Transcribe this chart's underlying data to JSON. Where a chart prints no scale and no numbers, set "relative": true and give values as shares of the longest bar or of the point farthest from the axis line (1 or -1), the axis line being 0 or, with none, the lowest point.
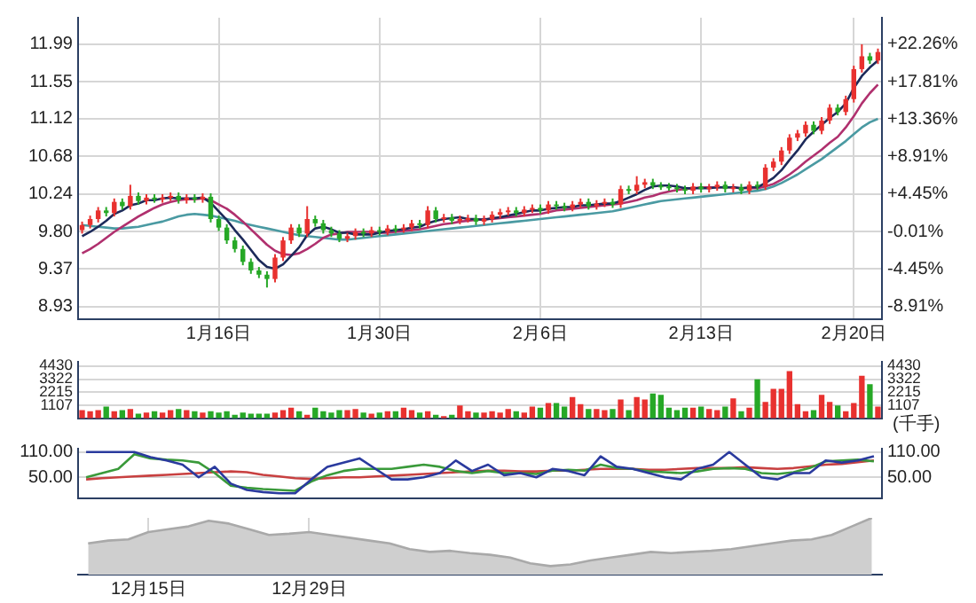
{
  "chart_data": [
    {
      "type": "candlestick",
      "categories": [
        null,
        null,
        null,
        null,
        null,
        null,
        null,
        null,
        null,
        null,
        null,
        null,
        null,
        null,
        null,
        null,
        null,
        "1月16日",
        null,
        null,
        null,
        null,
        null,
        null,
        null,
        null,
        null,
        null,
        null,
        null,
        null,
        null,
        null,
        null,
        null,
        null,
        null,
        "1月30日",
        null,
        null,
        null,
        null,
        null,
        null,
        null,
        null,
        null,
        null,
        null,
        null,
        null,
        null,
        null,
        null,
        null,
        null,
        null,
        "2月6日",
        null,
        null,
        null,
        null,
        null,
        null,
        null,
        null,
        null,
        null,
        null,
        null,
        null,
        null,
        null,
        null,
        null,
        null,
        null,
        "2月13日",
        null,
        null,
        null,
        null,
        null,
        null,
        null,
        null,
        null,
        null,
        null,
        null,
        null,
        null,
        null,
        null,
        null,
        null,
        "2月20日",
        null,
        null,
        null
      ],
      "ohlc": [
        [
          9.82,
          9.92,
          9.78,
          9.88
        ],
        [
          9.88,
          9.99,
          9.84,
          9.95
        ],
        [
          9.95,
          10.09,
          9.91,
          10.05
        ],
        [
          10.05,
          10.09,
          9.98,
          10.02
        ],
        [
          10.02,
          10.19,
          9.98,
          10.15
        ],
        [
          10.15,
          10.19,
          10.06,
          10.1
        ],
        [
          10.1,
          10.35,
          10.06,
          10.22
        ],
        [
          10.22,
          10.26,
          10.12,
          10.16
        ],
        [
          10.16,
          10.24,
          10.12,
          10.2
        ],
        [
          10.2,
          10.24,
          10.14,
          10.18
        ],
        [
          10.18,
          10.24,
          10.14,
          10.2
        ],
        [
          10.2,
          10.26,
          10.16,
          10.22
        ],
        [
          10.22,
          10.26,
          10.13,
          10.17
        ],
        [
          10.17,
          10.24,
          10.13,
          10.2
        ],
        [
          10.2,
          10.24,
          10.14,
          10.18
        ],
        [
          10.18,
          10.25,
          10.14,
          10.21
        ],
        [
          10.21,
          10.25,
          9.91,
          9.95
        ],
        [
          9.95,
          9.99,
          9.81,
          9.85
        ],
        [
          9.85,
          9.89,
          9.66,
          9.7
        ],
        [
          9.7,
          9.74,
          9.56,
          9.6
        ],
        [
          9.6,
          9.64,
          9.41,
          9.45
        ],
        [
          9.45,
          9.49,
          9.31,
          9.35
        ],
        [
          9.35,
          9.39,
          9.26,
          9.3
        ],
        [
          9.3,
          9.34,
          9.15,
          9.25
        ],
        [
          9.25,
          9.54,
          9.21,
          9.5
        ],
        [
          9.5,
          9.74,
          9.46,
          9.7
        ],
        [
          9.7,
          9.89,
          9.66,
          9.85
        ],
        [
          9.85,
          9.89,
          9.74,
          9.78
        ],
        [
          9.78,
          10.1,
          9.74,
          9.95
        ],
        [
          9.95,
          9.99,
          9.86,
          9.9
        ],
        [
          9.9,
          9.94,
          9.78,
          9.82
        ],
        [
          9.82,
          9.86,
          9.74,
          9.78
        ],
        [
          9.78,
          9.82,
          9.68,
          9.72
        ],
        [
          9.72,
          9.79,
          9.68,
          9.75
        ],
        [
          9.75,
          9.84,
          9.71,
          9.8
        ],
        [
          9.8,
          9.84,
          9.74,
          9.78
        ],
        [
          9.78,
          9.86,
          9.74,
          9.82
        ],
        [
          9.82,
          9.86,
          9.76,
          9.8
        ],
        [
          9.8,
          9.88,
          9.76,
          9.84
        ],
        [
          9.84,
          9.88,
          9.79,
          9.83
        ],
        [
          9.83,
          9.89,
          9.79,
          9.85
        ],
        [
          9.85,
          9.94,
          9.81,
          9.9
        ],
        [
          9.9,
          9.94,
          9.84,
          9.88
        ],
        [
          9.88,
          10.1,
          9.84,
          10.05
        ],
        [
          10.05,
          10.09,
          9.91,
          9.95
        ],
        [
          9.95,
          10.01,
          9.91,
          9.97
        ],
        [
          9.97,
          10.01,
          9.89,
          9.93
        ],
        [
          9.93,
          9.99,
          9.89,
          9.95
        ],
        [
          9.95,
          10.0,
          9.91,
          9.96
        ],
        [
          9.96,
          10.0,
          9.88,
          9.92
        ],
        [
          9.92,
          9.99,
          9.88,
          9.95
        ],
        [
          9.95,
          10.04,
          9.91,
          10.0
        ],
        [
          10.0,
          10.07,
          9.96,
          10.03
        ],
        [
          10.03,
          10.09,
          9.99,
          10.05
        ],
        [
          10.05,
          10.09,
          9.98,
          10.02
        ],
        [
          10.02,
          10.1,
          9.98,
          10.06
        ],
        [
          10.06,
          10.12,
          10.02,
          10.08
        ],
        [
          10.08,
          10.12,
          10.01,
          10.05
        ],
        [
          10.05,
          10.16,
          10.01,
          10.12
        ],
        [
          10.12,
          10.16,
          10.06,
          10.1
        ],
        [
          10.1,
          10.14,
          10.04,
          10.08
        ],
        [
          10.08,
          10.16,
          10.04,
          10.12
        ],
        [
          10.12,
          10.19,
          10.08,
          10.15
        ],
        [
          10.15,
          10.19,
          10.06,
          10.1
        ],
        [
          10.1,
          10.17,
          10.06,
          10.13
        ],
        [
          10.13,
          10.19,
          10.09,
          10.15
        ],
        [
          10.15,
          10.19,
          10.08,
          10.12
        ],
        [
          10.12,
          10.34,
          10.08,
          10.3
        ],
        [
          10.3,
          10.34,
          10.24,
          10.28
        ],
        [
          10.28,
          10.45,
          10.24,
          10.35
        ],
        [
          10.35,
          10.42,
          10.31,
          10.38
        ],
        [
          10.38,
          10.42,
          10.3,
          10.34
        ],
        [
          10.34,
          10.38,
          10.29,
          10.33
        ],
        [
          10.33,
          10.37,
          10.28,
          10.32
        ],
        [
          10.32,
          10.36,
          10.26,
          10.3
        ],
        [
          10.3,
          10.34,
          10.24,
          10.28
        ],
        [
          10.28,
          10.37,
          10.24,
          10.33
        ],
        [
          10.33,
          10.37,
          10.26,
          10.3
        ],
        [
          10.3,
          10.36,
          10.26,
          10.32
        ],
        [
          10.32,
          10.39,
          10.28,
          10.35
        ],
        [
          10.35,
          10.39,
          10.26,
          10.3
        ],
        [
          10.3,
          10.36,
          10.26,
          10.32
        ],
        [
          10.32,
          10.36,
          10.24,
          10.28
        ],
        [
          10.28,
          10.39,
          10.24,
          10.35
        ],
        [
          10.35,
          10.39,
          10.29,
          10.33
        ],
        [
          10.33,
          10.59,
          10.29,
          10.55
        ],
        [
          10.55,
          10.66,
          10.51,
          10.62
        ],
        [
          10.62,
          10.79,
          10.58,
          10.75
        ],
        [
          10.75,
          10.94,
          10.71,
          10.9
        ],
        [
          10.9,
          10.99,
          10.86,
          10.95
        ],
        [
          10.95,
          11.09,
          10.91,
          11.05
        ],
        [
          11.05,
          11.09,
          10.94,
          10.98
        ],
        [
          10.98,
          11.14,
          10.94,
          11.1
        ],
        [
          11.1,
          11.29,
          11.06,
          11.25
        ],
        [
          11.25,
          11.29,
          11.16,
          11.2
        ],
        [
          11.2,
          11.39,
          11.16,
          11.35
        ],
        [
          11.35,
          11.74,
          11.31,
          11.7
        ],
        [
          11.7,
          11.99,
          11.66,
          11.85
        ],
        [
          11.85,
          11.89,
          11.76,
          11.8
        ],
        [
          11.8,
          11.94,
          11.76,
          11.9
        ]
      ],
      "colors": [
        "#e8312f",
        "#e8312f",
        "#e8312f",
        "#26a826",
        "#e8312f",
        "#26a826",
        "#e8312f",
        "#26a826",
        "#e8312f",
        "#26a826",
        "#e8312f",
        "#e8312f",
        "#26a826",
        "#e8312f",
        "#26a826",
        "#e8312f",
        "#26a826",
        "#26a826",
        "#26a826",
        "#26a826",
        "#26a826",
        "#26a826",
        "#26a826",
        "#26a826",
        "#e8312f",
        "#e8312f",
        "#e8312f",
        "#26a826",
        "#e8312f",
        "#26a826",
        "#26a826",
        "#26a826",
        "#26a826",
        "#e8312f",
        "#e8312f",
        "#26a826",
        "#e8312f",
        "#26a826",
        "#e8312f",
        "#26a826",
        "#e8312f",
        "#e8312f",
        "#26a826",
        "#e8312f",
        "#26a826",
        "#e8312f",
        "#26a826",
        "#e8312f",
        "#e8312f",
        "#26a826",
        "#e8312f",
        "#e8312f",
        "#e8312f",
        "#e8312f",
        "#26a826",
        "#e8312f",
        "#e8312f",
        "#26a826",
        "#e8312f",
        "#26a826",
        "#26a826",
        "#e8312f",
        "#e8312f",
        "#26a826",
        "#e8312f",
        "#e8312f",
        "#26a826",
        "#e8312f",
        "#26a826",
        "#e8312f",
        "#e8312f",
        "#26a826",
        "#26a826",
        "#26a826",
        "#26a826",
        "#26a826",
        "#e8312f",
        "#26a826",
        "#e8312f",
        "#e8312f",
        "#26a826",
        "#e8312f",
        "#26a826",
        "#e8312f",
        "#26a826",
        "#e8312f",
        "#e8312f",
        "#e8312f",
        "#e8312f",
        "#e8312f",
        "#e8312f",
        "#26a826",
        "#e8312f",
        "#e8312f",
        "#26a826",
        "#e8312f",
        "#e8312f",
        "#e8312f",
        "#26a826",
        "#e8312f"
      ],
      "series": [
        {
          "type": "line",
          "color": "#1c2a5a",
          "values": [
            9.75,
            9.8,
            9.86,
            9.93,
            10.01,
            10.05,
            10.11,
            10.13,
            10.17,
            10.17,
            10.19,
            10.2,
            10.19,
            10.19,
            10.19,
            10.2,
            10.14,
            10.04,
            9.94,
            9.82,
            9.71,
            9.59,
            9.47,
            9.39,
            9.37,
            9.42,
            9.52,
            9.62,
            9.76,
            9.84,
            9.86,
            9.83,
            9.79,
            9.79,
            9.77,
            9.77,
            9.77,
            9.79,
            9.81,
            9.82,
            9.83,
            9.85,
            9.86,
            9.9,
            9.93,
            9.95,
            9.96,
            9.97,
            9.95,
            9.95,
            9.94,
            9.96,
            9.97,
            9.99,
            10.01,
            10.03,
            10.05,
            10.05,
            10.07,
            10.08,
            10.09,
            10.09,
            10.11,
            10.11,
            10.12,
            10.13,
            10.13,
            10.16,
            10.2,
            10.24,
            10.29,
            10.33,
            10.34,
            10.34,
            10.33,
            10.31,
            10.31,
            10.31,
            10.31,
            10.32,
            10.32,
            10.32,
            10.31,
            10.32,
            10.32,
            10.37,
            10.43,
            10.52,
            10.64,
            10.75,
            10.88,
            10.97,
            11.05,
            11.13,
            11.2,
            11.3,
            11.48,
            11.62,
            11.72,
            11.8
          ]
        },
        {
          "type": "line",
          "color": "#b0306e",
          "values": [
            9.55,
            9.6,
            9.66,
            9.73,
            9.8,
            9.86,
            9.92,
            9.98,
            10.03,
            10.08,
            10.12,
            10.15,
            10.17,
            10.18,
            10.18,
            10.19,
            10.17,
            10.12,
            10.07,
            10.0,
            9.92,
            9.83,
            9.74,
            9.65,
            9.58,
            9.54,
            9.53,
            9.55,
            9.6,
            9.66,
            9.73,
            9.77,
            9.78,
            9.8,
            9.8,
            9.8,
            9.8,
            9.79,
            9.79,
            9.8,
            9.81,
            9.82,
            9.83,
            9.85,
            9.87,
            9.89,
            9.9,
            9.92,
            9.93,
            9.94,
            9.95,
            9.95,
            9.96,
            9.97,
            9.98,
            9.99,
            10.0,
            10.01,
            10.03,
            10.05,
            10.06,
            10.07,
            10.08,
            10.09,
            10.1,
            10.11,
            10.12,
            10.13,
            10.15,
            10.17,
            10.2,
            10.22,
            10.25,
            10.27,
            10.29,
            10.3,
            10.31,
            10.32,
            10.32,
            10.32,
            10.32,
            10.32,
            10.31,
            10.31,
            10.31,
            10.33,
            10.36,
            10.41,
            10.47,
            10.54,
            10.62,
            10.69,
            10.76,
            10.84,
            10.91,
            11.02,
            11.15,
            11.3,
            11.42,
            11.52
          ]
        },
        {
          "type": "line",
          "color": "#4a9aa2",
          "values": [
            9.88,
            9.87,
            9.86,
            9.85,
            9.84,
            9.84,
            9.85,
            9.86,
            9.88,
            9.9,
            9.92,
            9.95,
            9.98,
            10.0,
            10.01,
            10.0,
            9.99,
            9.97,
            9.95,
            9.93,
            9.9,
            9.88,
            9.86,
            9.84,
            9.82,
            9.8,
            9.78,
            9.76,
            9.75,
            9.74,
            9.73,
            9.72,
            9.71,
            9.71,
            9.72,
            9.73,
            9.74,
            9.75,
            9.76,
            9.77,
            9.78,
            9.79,
            9.8,
            9.81,
            9.82,
            9.83,
            9.84,
            9.85,
            9.86,
            9.87,
            9.88,
            9.89,
            9.9,
            9.91,
            9.92,
            9.93,
            9.94,
            9.95,
            9.96,
            9.97,
            9.98,
            9.99,
            10.0,
            10.01,
            10.02,
            10.03,
            10.04,
            10.06,
            10.08,
            10.1,
            10.12,
            10.14,
            10.16,
            10.17,
            10.18,
            10.19,
            10.2,
            10.21,
            10.22,
            10.23,
            10.24,
            10.25,
            10.26,
            10.27,
            10.28,
            10.3,
            10.33,
            10.37,
            10.42,
            10.47,
            10.53,
            10.59,
            10.65,
            10.72,
            10.79,
            10.86,
            10.94,
            11.02,
            11.08,
            11.12
          ]
        }
      ],
      "ylim": [
        8.78,
        12.3
      ],
      "yticks": [
        8.93,
        9.37,
        {
          "value": 9.8,
          "label": "9.80"
        },
        10.24,
        10.68,
        11.12,
        11.55,
        11.99
      ],
      "y2lim": [
        -10.44,
        25.41
      ],
      "y2ticks": [
        {
          "value": -8.91,
          "label": "-8.91%"
        },
        {
          "value": -4.45,
          "label": "-4.45%"
        },
        {
          "value": -0.01,
          "label": "-0.01%"
        },
        {
          "value": 4.45,
          "label": "+4.45%"
        },
        {
          "value": 8.91,
          "label": "+8.91%"
        },
        {
          "value": 13.36,
          "label": "+13.36%"
        },
        {
          "value": 17.81,
          "label": "+17.81%"
        },
        {
          "value": 22.26,
          "label": "+22.26%"
        }
      ],
      "grid": true
    },
    {
      "type": "bar",
      "categories": [
        null,
        null,
        null,
        null,
        null,
        null,
        null,
        null,
        null,
        null,
        null,
        null,
        null,
        null,
        null,
        null,
        null,
        null,
        null,
        null,
        null,
        null,
        null,
        null,
        null,
        null,
        null,
        null,
        null,
        null,
        null,
        null,
        null,
        null,
        null,
        null,
        null,
        null,
        null,
        null,
        null,
        null,
        null,
        null,
        null,
        null,
        null,
        null,
        null,
        null,
        null,
        null,
        null,
        null,
        null,
        null,
        null,
        null,
        null,
        null,
        null,
        null,
        null,
        null,
        null,
        null,
        null,
        null,
        null,
        null,
        null,
        null,
        null,
        null,
        null,
        null,
        null,
        null,
        null,
        null,
        null,
        null,
        null,
        null,
        null,
        null,
        null,
        null,
        null,
        null,
        null,
        null,
        null,
        null,
        null,
        null,
        null,
        null,
        null,
        null
      ],
      "values": [
        700,
        600,
        700,
        1000,
        600,
        700,
        800,
        400,
        500,
        600,
        500,
        700,
        800,
        700,
        600,
        500,
        600,
        500,
        600,
        300,
        500,
        400,
        400,
        400,
        500,
        700,
        900,
        600,
        300,
        900,
        600,
        500,
        700,
        700,
        800,
        500,
        400,
        500,
        600,
        600,
        900,
        700,
        500,
        600,
        300,
        200,
        300,
        1100,
        600,
        500,
        500,
        600,
        500,
        800,
        600,
        500,
        1000,
        900,
        1300,
        1300,
        1000,
        1800,
        1200,
        800,
        800,
        700,
        800,
        1600,
        700,
        1800,
        1600,
        2100,
        2000,
        900,
        700,
        900,
        900,
        1000,
        800,
        700,
        1000,
        1700,
        600,
        900,
        3300,
        1400,
        2500,
        2500,
        4000,
        1200,
        600,
        700,
        2000,
        1400,
        1100,
        600,
        1300,
        3600,
        2900,
        1000
      ],
      "colors": [
        "#e8312f",
        "#e8312f",
        "#e8312f",
        "#26a826",
        "#e8312f",
        "#26a826",
        "#e8312f",
        "#26a826",
        "#e8312f",
        "#26a826",
        "#e8312f",
        "#e8312f",
        "#26a826",
        "#e8312f",
        "#26a826",
        "#e8312f",
        "#26a826",
        "#26a826",
        "#26a826",
        "#26a826",
        "#26a826",
        "#26a826",
        "#26a826",
        "#26a826",
        "#e8312f",
        "#e8312f",
        "#e8312f",
        "#26a826",
        "#e8312f",
        "#26a826",
        "#26a826",
        "#26a826",
        "#26a826",
        "#e8312f",
        "#e8312f",
        "#26a826",
        "#e8312f",
        "#26a826",
        "#e8312f",
        "#26a826",
        "#e8312f",
        "#e8312f",
        "#26a826",
        "#e8312f",
        "#26a826",
        "#e8312f",
        "#26a826",
        "#e8312f",
        "#e8312f",
        "#26a826",
        "#e8312f",
        "#e8312f",
        "#e8312f",
        "#e8312f",
        "#26a826",
        "#e8312f",
        "#e8312f",
        "#26a826",
        "#e8312f",
        "#26a826",
        "#26a826",
        "#e8312f",
        "#e8312f",
        "#26a826",
        "#e8312f",
        "#e8312f",
        "#26a826",
        "#e8312f",
        "#26a826",
        "#e8312f",
        "#e8312f",
        "#26a826",
        "#26a826",
        "#26a826",
        "#26a826",
        "#26a826",
        "#e8312f",
        "#26a826",
        "#e8312f",
        "#e8312f",
        "#26a826",
        "#e8312f",
        "#26a826",
        "#e8312f",
        "#26a826",
        "#e8312f",
        "#e8312f",
        "#e8312f",
        "#e8312f",
        "#e8312f",
        "#e8312f",
        "#26a826",
        "#e8312f",
        "#e8312f",
        "#26a826",
        "#e8312f",
        "#e8312f",
        "#e8312f",
        "#26a826",
        "#e8312f"
      ],
      "ylim": [
        0,
        4770
      ],
      "yticks": [
        1107,
        2215,
        3322,
        4430
      ],
      "y2lim": [
        0,
        4770
      ],
      "y2ticks": [
        1107,
        2215,
        3322,
        4430
      ],
      "y2label": "(千手)",
      "grid": "y",
      "tick_labels": "y"
    },
    {
      "type": "line",
      "categories": [
        null,
        null,
        null,
        null,
        null,
        null,
        null,
        null,
        null,
        null,
        null,
        null,
        null,
        null,
        null,
        null,
        null,
        null,
        null,
        null,
        null,
        null,
        null,
        null,
        null,
        null,
        null,
        null,
        null,
        null,
        null,
        null,
        null,
        null,
        null,
        null,
        null,
        null,
        null,
        null,
        null,
        null,
        null,
        null,
        null,
        null,
        null,
        null,
        null,
        null
      ],
      "series": [
        {
          "color": "#2a3a9e",
          "values": [
            110,
            110,
            110,
            110,
            98,
            90,
            80,
            50,
            75,
            35,
            20,
            15,
            12,
            12,
            45,
            75,
            85,
            95,
            70,
            45,
            45,
            50,
            60,
            90,
            65,
            80,
            55,
            60,
            50,
            70,
            65,
            55,
            100,
            75,
            70,
            60,
            50,
            45,
            70,
            80,
            110,
            80,
            50,
            45,
            60,
            60,
            90,
            85,
            90,
            100
          ]
        },
        {
          "color": "#3a9a3a",
          "values": [
            50,
            60,
            70,
            105,
            95,
            92,
            90,
            85,
            60,
            30,
            25,
            22,
            20,
            18,
            40,
            55,
            65,
            70,
            70,
            70,
            75,
            80,
            75,
            65,
            60,
            65,
            60,
            60,
            58,
            66,
            68,
            66,
            80,
            72,
            70,
            64,
            62,
            60,
            64,
            70,
            72,
            70,
            60,
            58,
            62,
            72,
            88,
            90,
            92,
            88
          ]
        },
        {
          "color": "#c84040",
          "values": [
            45,
            48,
            50,
            52,
            54,
            56,
            58,
            60,
            62,
            64,
            62,
            56,
            52,
            48,
            46,
            48,
            50,
            50,
            52,
            54,
            56,
            58,
            60,
            62,
            64,
            66,
            66,
            64,
            64,
            66,
            66,
            68,
            70,
            70,
            70,
            68,
            68,
            70,
            72,
            72,
            72,
            74,
            72,
            70,
            72,
            76,
            80,
            82,
            86,
            90
          ]
        }
      ],
      "ylim": [
        0,
        118
      ],
      "yticks": [
        {
          "value": 50,
          "label": "50.00"
        },
        {
          "value": 110,
          "label": "110.00"
        }
      ],
      "y2lim": [
        0,
        118
      ],
      "y2ticks": [
        {
          "value": 50,
          "label": "50.00"
        },
        {
          "value": 110,
          "label": "110.00"
        }
      ],
      "grid": "y",
      "tick_labels": "y"
    },
    {
      "type": "area",
      "relative": true,
      "categories": [
        null,
        null,
        null,
        "12月15日",
        null,
        null,
        null,
        null,
        null,
        null,
        null,
        "12月29日",
        null,
        null,
        null,
        null,
        null,
        null,
        null,
        null,
        null,
        null,
        null,
        null,
        null,
        null,
        null,
        null,
        null,
        null,
        null,
        null,
        null,
        null,
        null,
        null,
        null,
        null,
        null,
        null
      ],
      "values": [
        0.55,
        0.6,
        0.62,
        0.75,
        0.8,
        0.85,
        0.95,
        0.9,
        0.8,
        0.7,
        0.72,
        0.75,
        0.7,
        0.65,
        0.6,
        0.55,
        0.45,
        0.4,
        0.42,
        0.38,
        0.35,
        0.3,
        0.2,
        0.15,
        0.18,
        0.25,
        0.3,
        0.35,
        0.4,
        0.38,
        0.4,
        0.42,
        0.45,
        0.5,
        0.55,
        0.6,
        0.62,
        0.7,
        0.85,
        1.0
      ],
      "color": "#cfcfcf",
      "grid": "x"
    }
  ]
}
